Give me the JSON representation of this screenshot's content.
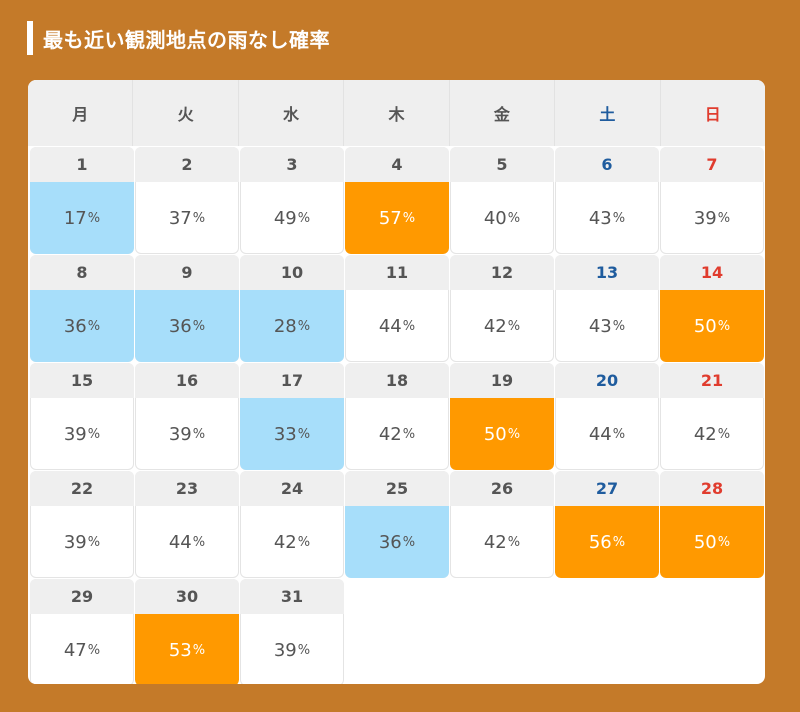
{
  "title": "最も近い観測地点の雨なし確率",
  "colors": {
    "background": "#c47a29",
    "low": "#a7defa",
    "high": "#ff9900",
    "saturday": "#1f5c9e",
    "sunday": "#e03c2e"
  },
  "weekdays": [
    "月",
    "火",
    "水",
    "木",
    "金",
    "土",
    "日"
  ],
  "percent_unit": "%",
  "days": [
    {
      "date": "1",
      "value": "17",
      "level": "low"
    },
    {
      "date": "2",
      "value": "37",
      "level": "normal"
    },
    {
      "date": "3",
      "value": "49",
      "level": "normal"
    },
    {
      "date": "4",
      "value": "57",
      "level": "high"
    },
    {
      "date": "5",
      "value": "40",
      "level": "normal"
    },
    {
      "date": "6",
      "value": "43",
      "level": "normal"
    },
    {
      "date": "7",
      "value": "39",
      "level": "normal"
    },
    {
      "date": "8",
      "value": "36",
      "level": "low"
    },
    {
      "date": "9",
      "value": "36",
      "level": "low"
    },
    {
      "date": "10",
      "value": "28",
      "level": "low"
    },
    {
      "date": "11",
      "value": "44",
      "level": "normal"
    },
    {
      "date": "12",
      "value": "42",
      "level": "normal"
    },
    {
      "date": "13",
      "value": "43",
      "level": "normal"
    },
    {
      "date": "14",
      "value": "50",
      "level": "high"
    },
    {
      "date": "15",
      "value": "39",
      "level": "normal"
    },
    {
      "date": "16",
      "value": "39",
      "level": "normal"
    },
    {
      "date": "17",
      "value": "33",
      "level": "low"
    },
    {
      "date": "18",
      "value": "42",
      "level": "normal"
    },
    {
      "date": "19",
      "value": "50",
      "level": "high"
    },
    {
      "date": "20",
      "value": "44",
      "level": "normal"
    },
    {
      "date": "21",
      "value": "42",
      "level": "normal"
    },
    {
      "date": "22",
      "value": "39",
      "level": "normal"
    },
    {
      "date": "23",
      "value": "44",
      "level": "normal"
    },
    {
      "date": "24",
      "value": "42",
      "level": "normal"
    },
    {
      "date": "25",
      "value": "36",
      "level": "low"
    },
    {
      "date": "26",
      "value": "42",
      "level": "normal"
    },
    {
      "date": "27",
      "value": "56",
      "level": "high"
    },
    {
      "date": "28",
      "value": "50",
      "level": "high"
    },
    {
      "date": "29",
      "value": "47",
      "level": "normal"
    },
    {
      "date": "30",
      "value": "53",
      "level": "high"
    },
    {
      "date": "31",
      "value": "39",
      "level": "normal"
    }
  ]
}
